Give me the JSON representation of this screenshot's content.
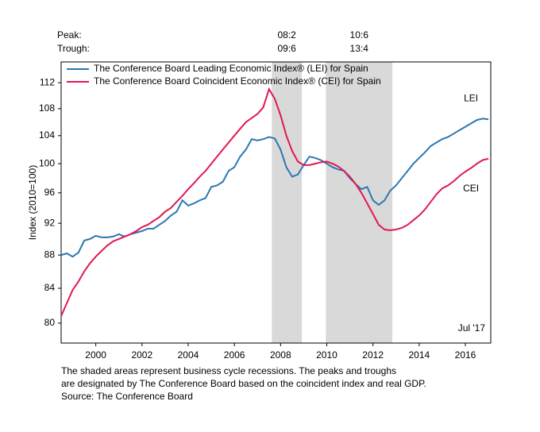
{
  "chart_data": {
    "type": "line",
    "ylabel": "Index (2010=100)",
    "log_scale": true,
    "xlim": [
      1999.0,
      2017.6
    ],
    "ylim": [
      77.8,
      115.3
    ],
    "yticks": [
      80,
      84,
      88,
      92,
      96,
      100,
      104,
      108,
      112
    ],
    "xticks": [
      {
        "value": 2000.5,
        "label": "2000"
      },
      {
        "value": 2002.5,
        "label": "2002"
      },
      {
        "value": 2004.5,
        "label": "2004"
      },
      {
        "value": 2006.5,
        "label": "2006"
      },
      {
        "value": 2008.5,
        "label": "2008"
      },
      {
        "value": 2010.5,
        "label": "2010"
      },
      {
        "value": 2012.5,
        "label": "2012"
      },
      {
        "value": 2014.5,
        "label": "2014"
      },
      {
        "value": 2016.5,
        "label": "2016"
      }
    ],
    "peak_label": "Peak:",
    "trough_label": "Trough:",
    "recessions": [
      {
        "start": 2008.12,
        "end": 2009.42,
        "peak": "08:2",
        "trough": "09:6"
      },
      {
        "start": 2010.46,
        "end": 2013.34,
        "peak": "10:6",
        "trough": "13:4"
      }
    ],
    "recession_color": "#d9d9d9",
    "date_note": "Jul '17",
    "footnote": [
      "The shaded areas represent business cycle recessions. The peaks and troughs",
      "are designated by The Conference Board based on the coincident index and real GDP.",
      "Source: The Conference Board"
    ],
    "x": [
      1999.0,
      1999.25,
      1999.5,
      1999.75,
      2000.0,
      2000.25,
      2000.5,
      2000.75,
      2001.0,
      2001.25,
      2001.5,
      2001.75,
      2002.0,
      2002.25,
      2002.5,
      2002.75,
      2003.0,
      2003.25,
      2003.5,
      2003.75,
      2004.0,
      2004.25,
      2004.5,
      2004.75,
      2005.0,
      2005.25,
      2005.5,
      2005.75,
      2006.0,
      2006.25,
      2006.5,
      2006.75,
      2007.0,
      2007.25,
      2007.5,
      2007.75,
      2008.0,
      2008.25,
      2008.5,
      2008.75,
      2009.0,
      2009.25,
      2009.5,
      2009.75,
      2010.0,
      2010.25,
      2010.5,
      2010.75,
      2011.0,
      2011.25,
      2011.5,
      2011.75,
      2012.0,
      2012.25,
      2012.5,
      2012.75,
      2013.0,
      2013.25,
      2013.5,
      2013.75,
      2014.0,
      2014.25,
      2014.5,
      2014.75,
      2015.0,
      2015.25,
      2015.5,
      2015.75,
      2016.0,
      2016.25,
      2016.5,
      2016.75,
      2017.0,
      2017.25,
      2017.5
    ],
    "series": [
      {
        "name": "The Conference Board Leading Economic Index® (LEI) for Spain",
        "end_label": "LEI",
        "color": "#2a78b4",
        "values": [
          88.0,
          88.2,
          87.8,
          88.3,
          89.8,
          90.0,
          90.4,
          90.2,
          90.2,
          90.3,
          90.6,
          90.3,
          90.6,
          90.8,
          91.0,
          91.3,
          91.3,
          91.8,
          92.3,
          93.0,
          93.5,
          95.0,
          94.3,
          94.6,
          95.0,
          95.3,
          96.8,
          97.0,
          97.5,
          99.0,
          99.5,
          101.0,
          102.0,
          103.5,
          103.3,
          103.5,
          103.8,
          103.6,
          102.0,
          99.5,
          98.2,
          98.5,
          99.8,
          101.0,
          100.8,
          100.5,
          100.0,
          99.5,
          99.2,
          99.0,
          98.0,
          97.2,
          96.5,
          96.8,
          95.0,
          94.4,
          95.0,
          96.3,
          97.0,
          98.0,
          99.0,
          100.0,
          100.8,
          101.6,
          102.5,
          103.0,
          103.5,
          103.8,
          104.3,
          104.8,
          105.3,
          105.8,
          106.3,
          106.5,
          106.4
        ]
      },
      {
        "name": "The Conference Board Coincident Economic Index® (CEI) for Spain",
        "end_label": "CEI",
        "color": "#e0194e",
        "values": [
          80.8,
          82.3,
          83.8,
          84.8,
          86.0,
          87.0,
          87.8,
          88.5,
          89.2,
          89.7,
          90.0,
          90.3,
          90.6,
          91.0,
          91.5,
          91.8,
          92.3,
          92.8,
          93.5,
          94.0,
          94.8,
          95.6,
          96.5,
          97.3,
          98.2,
          99.0,
          100.0,
          101.0,
          102.0,
          103.0,
          104.0,
          105.0,
          106.0,
          106.6,
          107.2,
          108.2,
          111.0,
          109.5,
          107.0,
          104.0,
          101.8,
          100.3,
          99.8,
          99.8,
          100.0,
          100.2,
          100.3,
          100.0,
          99.6,
          99.0,
          98.2,
          97.2,
          96.0,
          94.6,
          93.2,
          91.8,
          91.2,
          91.1,
          91.2,
          91.4,
          91.8,
          92.4,
          93.0,
          93.8,
          94.8,
          95.8,
          96.6,
          97.0,
          97.6,
          98.3,
          98.9,
          99.4,
          100.0,
          100.5,
          100.7
        ]
      }
    ]
  }
}
